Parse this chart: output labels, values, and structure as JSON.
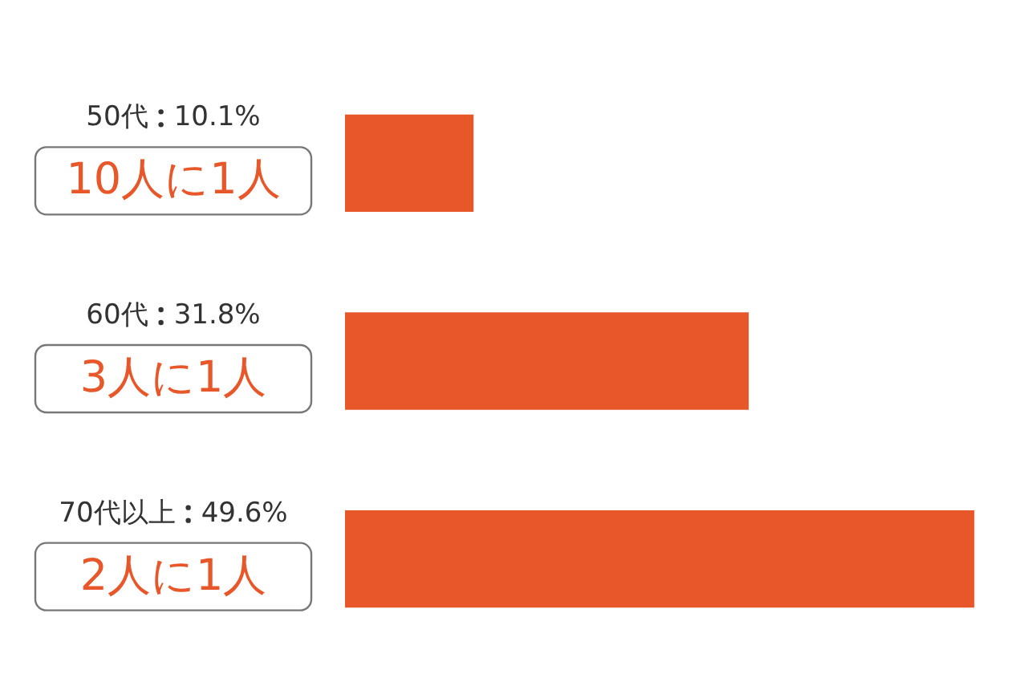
{
  "chart_data": {
    "type": "bar",
    "orientation": "horizontal",
    "categories": [
      "50代",
      "60代",
      "70代以上"
    ],
    "values": [
      10.1,
      31.8,
      49.6
    ],
    "value_labels": [
      "10.1%",
      "31.8%",
      "49.6%"
    ],
    "color": "#e8572a",
    "annotations": [
      "10人に1人",
      "3人に1人",
      "2人に1人"
    ]
  }
}
